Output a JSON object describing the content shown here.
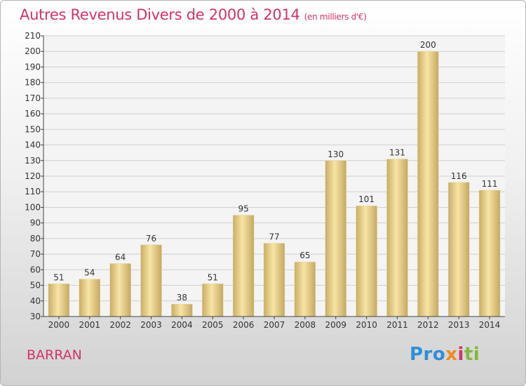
{
  "title": "Autres Revenus Divers de 2000 à 2014",
  "subtitle": "(en milliers d'€)",
  "location": "BARRAN",
  "logo": {
    "part1": "Pro",
    "part2": "x",
    "part3": "i",
    "part4": "ti"
  },
  "colors": {
    "title": "#d2336a",
    "bar_light": "#f7e2a3",
    "bar_dark": "#c7ac66"
  },
  "chart_data": {
    "type": "bar",
    "categories": [
      "2000",
      "2001",
      "2002",
      "2003",
      "2004",
      "2005",
      "2006",
      "2007",
      "2008",
      "2009",
      "2010",
      "2011",
      "2012",
      "2013",
      "2014"
    ],
    "values": [
      51,
      54,
      64,
      76,
      38,
      51,
      95,
      77,
      65,
      130,
      101,
      131,
      200,
      116,
      111
    ],
    "ylim": [
      30,
      210
    ],
    "yticks": [
      30,
      40,
      50,
      60,
      70,
      80,
      90,
      100,
      110,
      120,
      130,
      140,
      150,
      160,
      170,
      180,
      190,
      200,
      210
    ],
    "grid": true,
    "data_labels": true
  }
}
